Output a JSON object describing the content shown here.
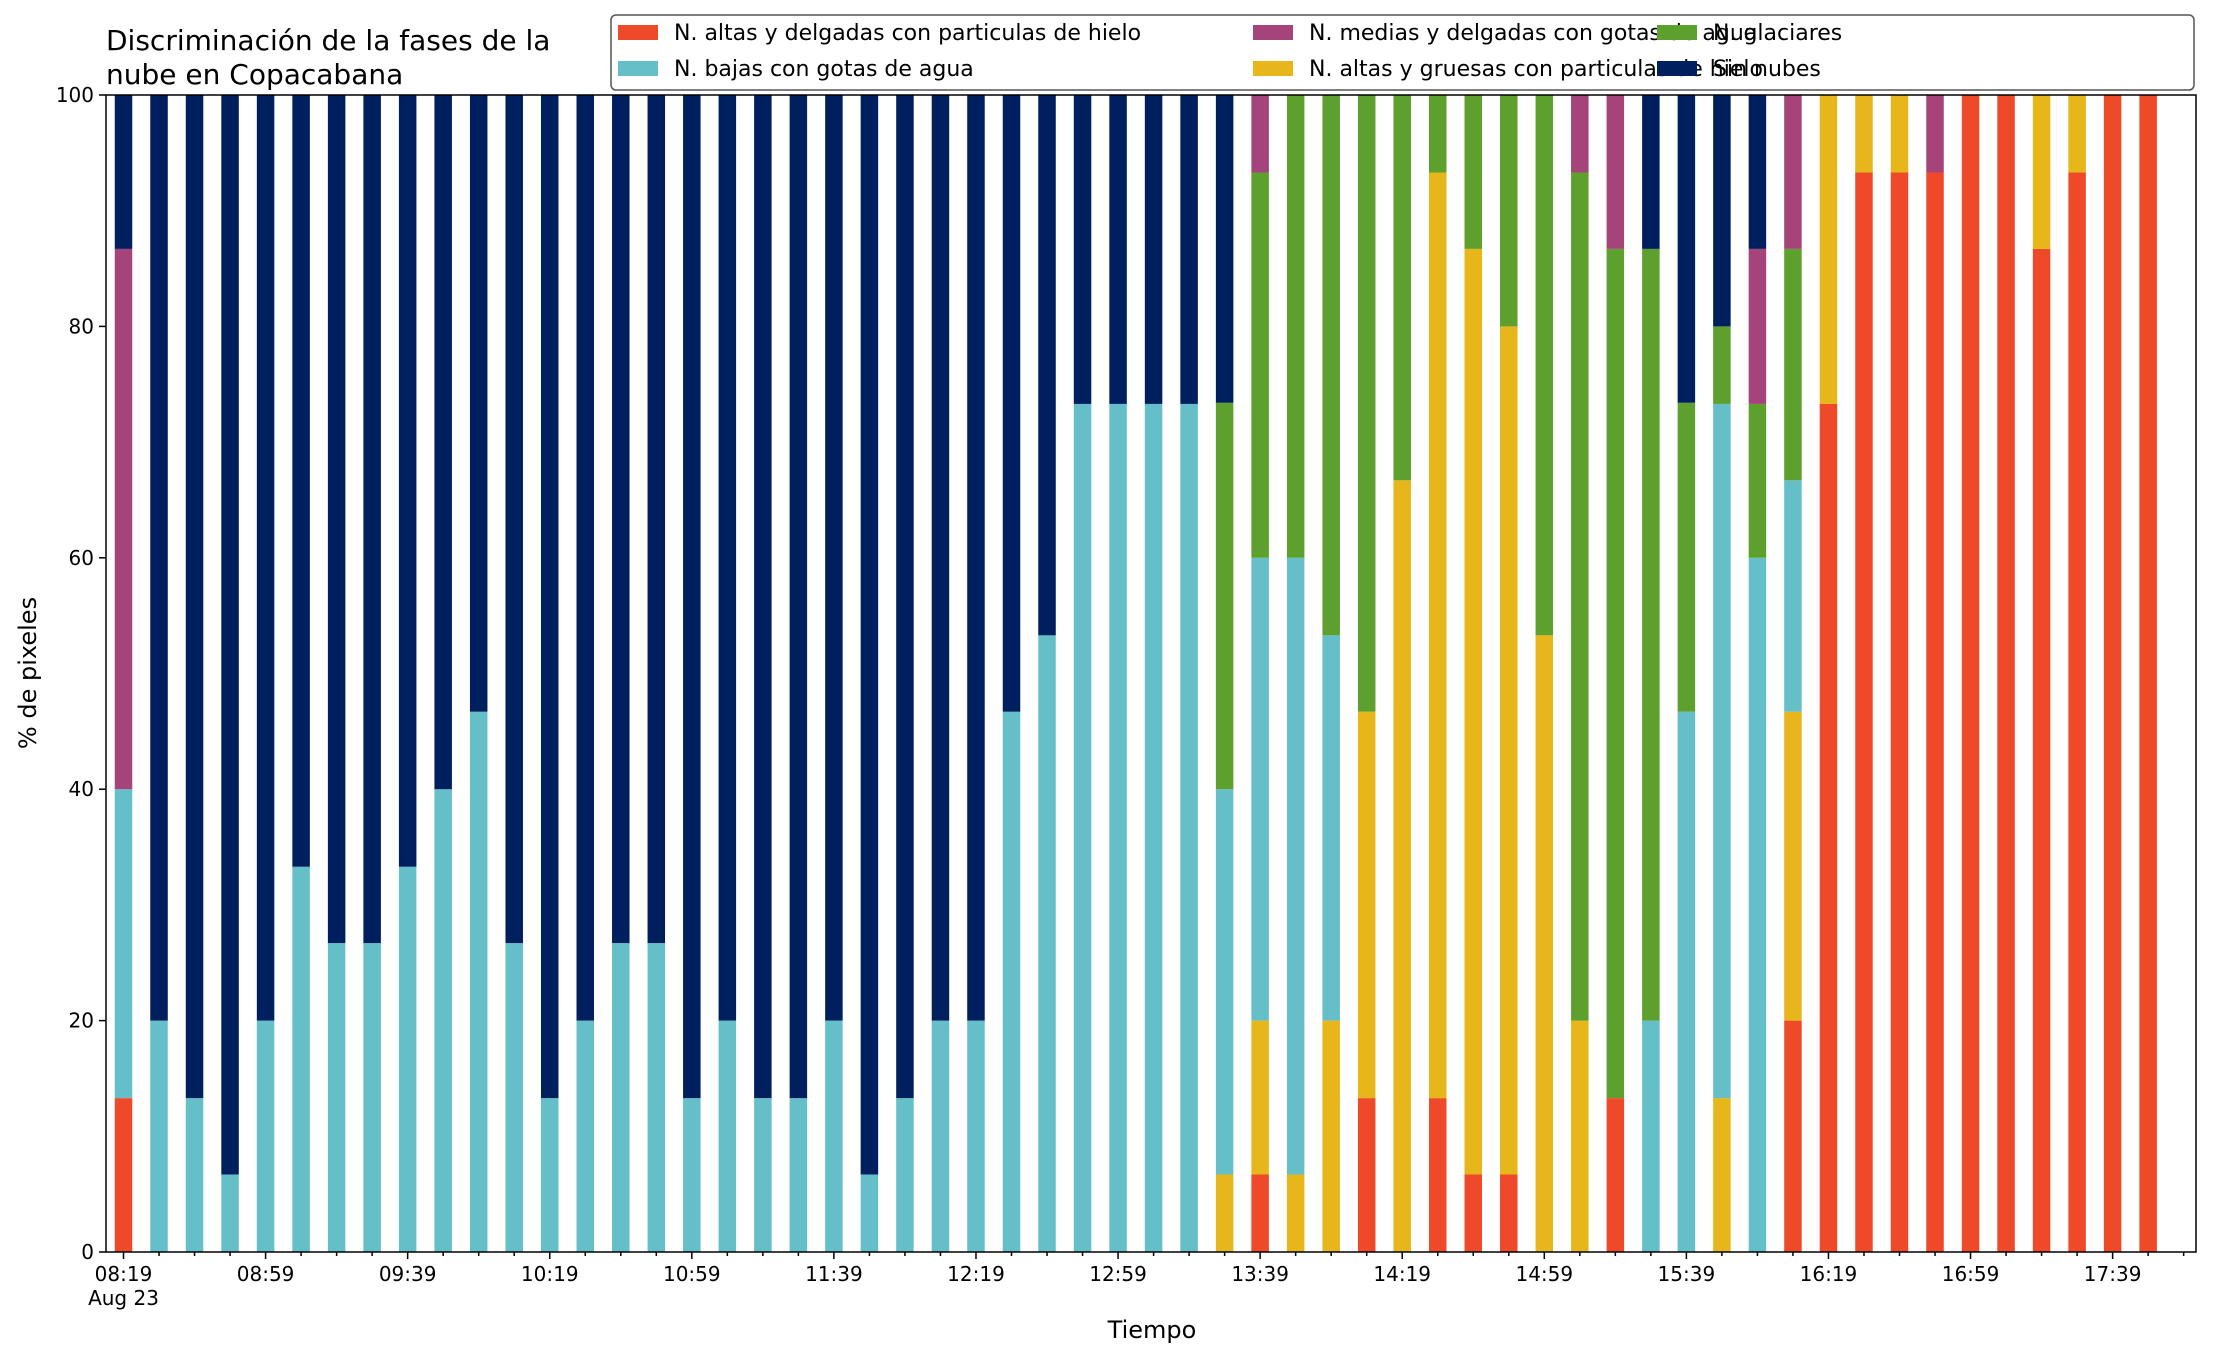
{
  "chart_data": {
    "type": "bar",
    "stacked": true,
    "title_lines": [
      "Discriminación de la fases de la",
      "nube en Copacabana"
    ],
    "xlabel": "Tiempo",
    "ylabel": "% de pixeles",
    "ylim": [
      0,
      100
    ],
    "yticks": [
      "0",
      "20",
      "40",
      "60",
      "80",
      "100"
    ],
    "xtick_labels": [
      "08:19",
      "08:59",
      "09:39",
      "10:19",
      "10:59",
      "11:39",
      "12:19",
      "12:59",
      "13:39",
      "14:19",
      "14:59",
      "15:39",
      "16:19",
      "16:59",
      "17:39"
    ],
    "xtick_sublabel": "Aug 23",
    "grid": false,
    "legend_position": "top-right",
    "categories": [
      "08:19",
      "08:29",
      "08:39",
      "08:49",
      "08:59",
      "09:09",
      "09:19",
      "09:29",
      "09:39",
      "09:49",
      "09:59",
      "10:09",
      "10:19",
      "10:29",
      "10:39",
      "10:49",
      "10:59",
      "11:09",
      "11:19",
      "11:29",
      "11:39",
      "11:49",
      "11:59",
      "12:09",
      "12:19",
      "12:29",
      "12:39",
      "12:49",
      "12:59",
      "13:09",
      "13:19",
      "13:29",
      "13:39",
      "13:49",
      "13:59",
      "14:09",
      "14:19",
      "14:29",
      "14:39",
      "14:49",
      "14:59",
      "15:09",
      "15:19",
      "15:29",
      "15:39",
      "15:49",
      "15:59",
      "16:09",
      "16:19",
      "16:29",
      "16:39",
      "16:49",
      "16:59",
      "17:09",
      "17:19",
      "17:29",
      "17:39",
      "17:49"
    ],
    "series": [
      {
        "name": "N. altas y delgadas con particulas de hielo",
        "color": "#ee4a2a",
        "values": [
          13.3,
          0,
          0,
          0,
          0,
          0,
          0,
          0,
          0,
          0,
          0,
          0,
          0,
          0,
          0,
          0,
          0,
          0,
          0,
          0,
          0,
          0,
          0,
          0,
          0,
          0,
          0,
          0,
          0,
          0,
          0,
          0,
          6.7,
          0,
          0,
          13.3,
          0,
          13.3,
          6.7,
          6.7,
          0,
          0,
          13.3,
          0,
          0,
          0,
          0,
          20,
          73.3,
          93.3,
          93.3,
          93.3,
          100,
          100,
          86.7,
          93.3,
          100,
          100
        ]
      },
      {
        "name": "N. altas y gruesas con particulas de hielo",
        "color": "#e6b61a",
        "values": [
          0,
          0,
          0,
          0,
          0,
          0,
          0,
          0,
          0,
          0,
          0,
          0,
          0,
          0,
          0,
          0,
          0,
          0,
          0,
          0,
          0,
          0,
          0,
          0,
          0,
          0,
          0,
          0,
          0,
          0,
          0,
          6.7,
          13.3,
          6.7,
          20,
          33.4,
          66.7,
          80,
          80,
          73.3,
          53.3,
          20,
          0,
          0,
          0,
          13.3,
          0,
          26.7,
          26.7,
          6.7,
          6.7,
          0,
          0,
          0,
          13.3,
          6.7,
          0,
          0
        ]
      },
      {
        "name": "N. bajas con gotas de agua",
        "color": "#65bfc9",
        "values": [
          26.7,
          20,
          13.3,
          6.7,
          20,
          33.3,
          26.7,
          26.7,
          33.3,
          40,
          46.7,
          26.7,
          13.3,
          20,
          26.7,
          26.7,
          13.3,
          20,
          13.3,
          13.3,
          20,
          6.7,
          13.3,
          20,
          20,
          46.7,
          53.3,
          73.3,
          73.3,
          73.3,
          73.3,
          33.3,
          40,
          53.3,
          33.3,
          0,
          0,
          0,
          0,
          0,
          0,
          0,
          0,
          20,
          46.7,
          60,
          60,
          20,
          0,
          0,
          0,
          0,
          0,
          0,
          0,
          0,
          0,
          0
        ]
      },
      {
        "name": "N. glaciares",
        "color": "#5da02d",
        "values": [
          0,
          0,
          0,
          0,
          0,
          0,
          0,
          0,
          0,
          0,
          0,
          0,
          0,
          0,
          0,
          0,
          0,
          0,
          0,
          0,
          0,
          0,
          0,
          0,
          0,
          0,
          0,
          0,
          0,
          0,
          0,
          33.4,
          33.3,
          40,
          46.7,
          53.3,
          33.3,
          6.7,
          13.3,
          20,
          46.7,
          73.3,
          73.4,
          66.7,
          26.7,
          6.7,
          13.3,
          20,
          0,
          0,
          0,
          0,
          0,
          0,
          0,
          0,
          0,
          0
        ]
      },
      {
        "name": "N. medias y delgadas con gotas de agua",
        "color": "#a4447b",
        "values": [
          46.7,
          0,
          0,
          0,
          0,
          0,
          0,
          0,
          0,
          0,
          0,
          0,
          0,
          0,
          0,
          0,
          0,
          0,
          0,
          0,
          0,
          0,
          0,
          0,
          0,
          0,
          0,
          0,
          0,
          0,
          0,
          0,
          6.7,
          0,
          0,
          0,
          0,
          0,
          0,
          0,
          0,
          6.7,
          13.3,
          0,
          0,
          0,
          13.4,
          13.3,
          0,
          0,
          0,
          6.7,
          0,
          0,
          0,
          0,
          0,
          0
        ]
      },
      {
        "name": "Sin nubes",
        "color": "#001f5e",
        "values": [
          13.3,
          80,
          86.7,
          93.3,
          80,
          66.7,
          73.3,
          73.3,
          66.7,
          60,
          53.3,
          73.3,
          86.7,
          80,
          73.3,
          73.3,
          86.7,
          80,
          86.7,
          86.7,
          80,
          93.3,
          86.7,
          80,
          80,
          53.3,
          46.7,
          26.7,
          26.7,
          26.7,
          26.7,
          26.6,
          0,
          0,
          0,
          0,
          0,
          0,
          0,
          0,
          0,
          0,
          0,
          13.3,
          26.6,
          20,
          13.3,
          0,
          0,
          0,
          0,
          0,
          0,
          0,
          0,
          0,
          0,
          0
        ]
      }
    ],
    "legend_order": [
      0,
      2,
      4,
      1,
      3,
      5
    ]
  }
}
